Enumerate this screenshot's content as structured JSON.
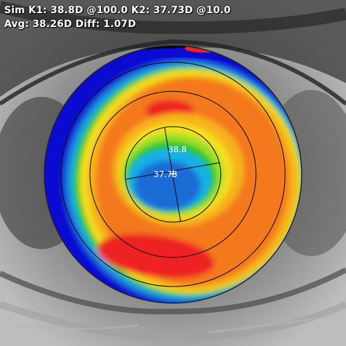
{
  "readout": {
    "line1": "Sim K1: 38.8D @100.0 K2: 37.73D @10.0",
    "line2": "Avg: 38.26D Diff: 1.07D"
  },
  "map": {
    "center_labels": {
      "upper": "38.8",
      "lower": "37.73"
    },
    "colors": {
      "dark_blue": "#0a0ad0",
      "blue": "#1a6cd8",
      "cyan": "#18b0e6",
      "green": "#22c52a",
      "lime": "#9ee02a",
      "yellow": "#f4e020",
      "amber": "#f6b21c",
      "orange": "#f4781e",
      "red": "#ee2424",
      "black": "#000000"
    }
  }
}
